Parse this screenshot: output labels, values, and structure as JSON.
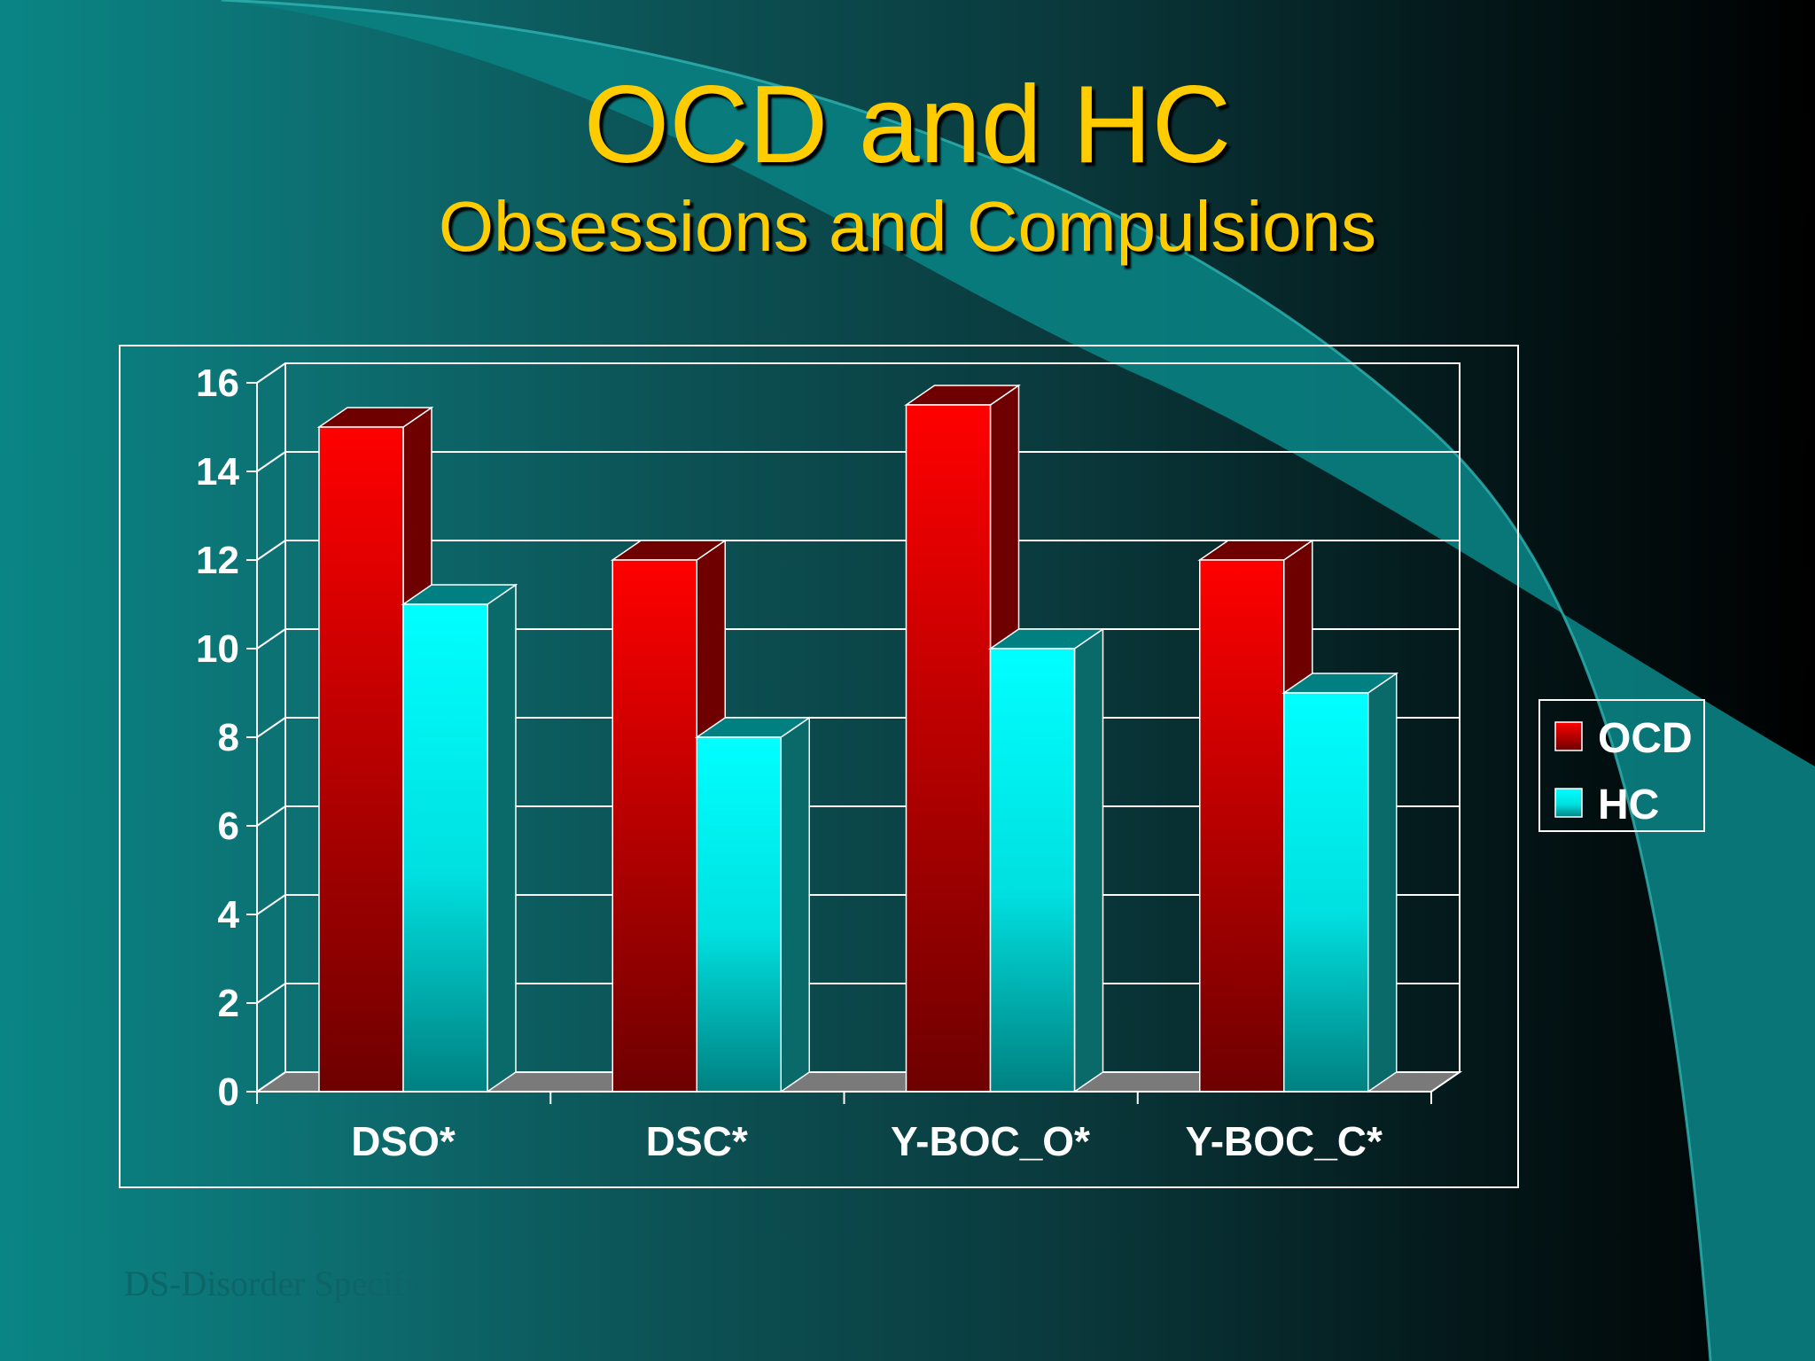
{
  "slide": {
    "title": "OCD and HC",
    "subtitle": "Obsessions and Compulsions",
    "footnote": "DS-Disorder Specific"
  },
  "colors": {
    "ocd_front": "#ff0000",
    "ocd_dark": "#6e0000",
    "hc_front": "#00ffff",
    "hc_dark": "#008080",
    "title": "#ffcc00"
  },
  "chart_data": {
    "type": "bar",
    "title": "",
    "xlabel": "",
    "ylabel": "",
    "categories": [
      "DSO*",
      "DSC*",
      "Y-BOC_O*",
      "Y-BOC_C*"
    ],
    "series": [
      {
        "name": "OCD",
        "values": [
          15,
          12,
          15.5,
          12
        ]
      },
      {
        "name": "HC",
        "values": [
          11,
          8,
          10,
          9
        ]
      }
    ],
    "ylim": [
      0,
      16
    ],
    "yticks": [
      0,
      2,
      4,
      6,
      8,
      10,
      12,
      14,
      16
    ],
    "grid": true,
    "legend": "right"
  }
}
